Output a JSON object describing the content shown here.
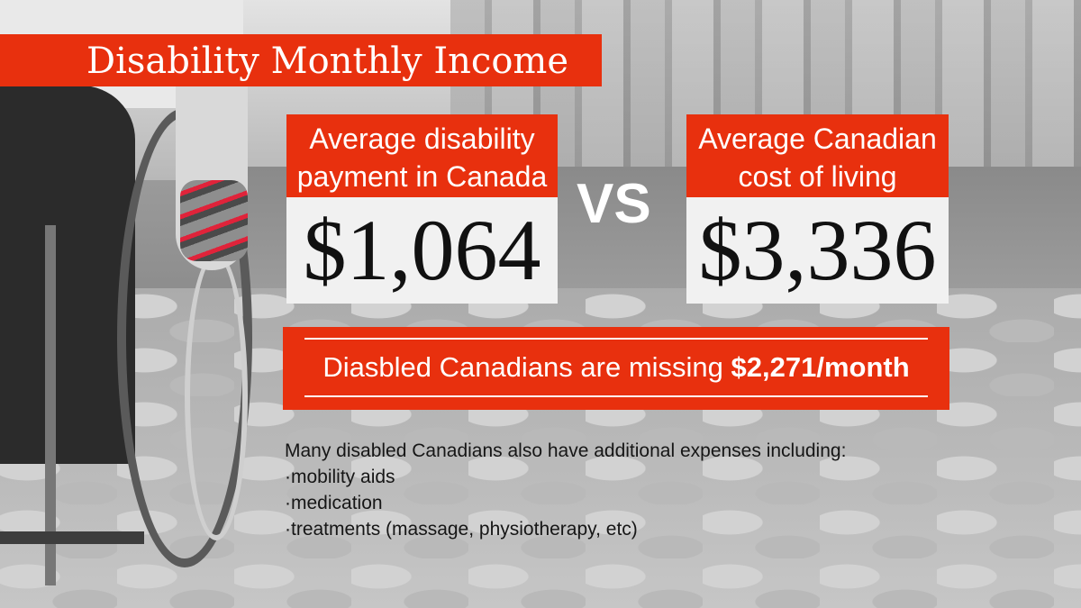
{
  "title": "Disability Monthly Income",
  "left_card": {
    "heading_line1": "Average disability",
    "heading_line2": "payment in Canada",
    "amount": "$1,064"
  },
  "vs_label": "VS",
  "right_card": {
    "heading_line1": "Average Canadian",
    "heading_line2": "cost of living",
    "amount": "$3,336"
  },
  "missing": {
    "text": "Diasbled Canadians are missing ",
    "amount": "$2,271/month"
  },
  "notes": {
    "intro": "Many disabled Canadians also have additional expenses including:",
    "items": [
      "·mobility aids",
      "·medication",
      "·treatments (massage, physiotherapy, etc)"
    ]
  },
  "colors": {
    "accent": "#e8300e",
    "card_body": "#f1f1f1",
    "text_dark": "#161616"
  }
}
